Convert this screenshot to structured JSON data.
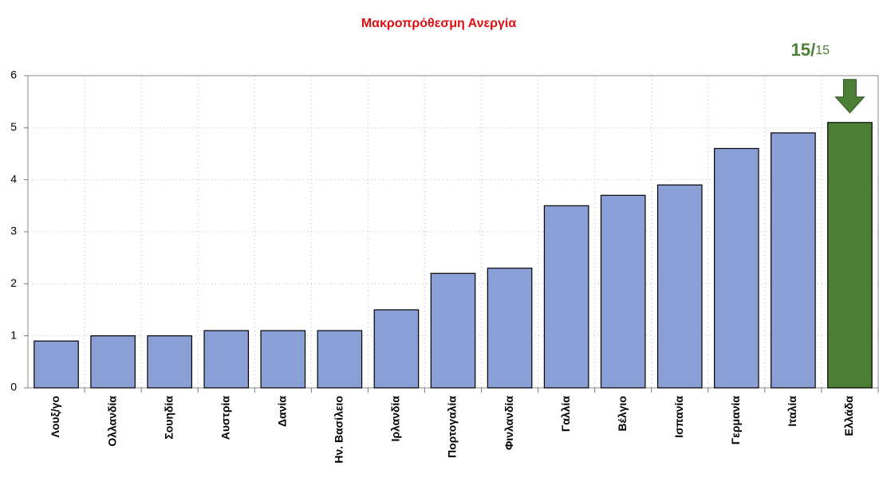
{
  "chart_data": {
    "type": "bar",
    "title": "Μακροπρόθεσμη Ανεργία",
    "rank_label": [
      "15/",
      "15"
    ],
    "categories": [
      "Λουξ/γο",
      "Ολλανδία",
      "Σουηδία",
      "Αυστρία",
      "Δανία",
      "Ην. Βασίλειο",
      "Ιρλανδία",
      "Πορτογαλία",
      "Φινλανδία",
      "Γαλλία",
      "Βέλγιο",
      "Ισπανία",
      "Γερμανία",
      "Ιταλία",
      "Ελλάδα"
    ],
    "values": [
      0.9,
      1.0,
      1.0,
      1.1,
      1.1,
      1.1,
      1.5,
      2.2,
      2.3,
      3.5,
      3.7,
      3.9,
      4.6,
      4.9,
      5.1
    ],
    "colors": [
      "#8a9fd5",
      "#8a9fd5",
      "#8a9fd5",
      "#8a9fd5",
      "#8a9fd5",
      "#8a9fd5",
      "#8a9fd5",
      "#8a9fd5",
      "#8a9fd5",
      "#8a9fd5",
      "#8a9fd5",
      "#8a9fd5",
      "#8a9fd5",
      "#8a9fd5",
      "#4b7f36"
    ],
    "ylim": [
      0,
      6
    ],
    "yticks": [
      0,
      1,
      2,
      3,
      4,
      5,
      6
    ],
    "grid": true
  }
}
